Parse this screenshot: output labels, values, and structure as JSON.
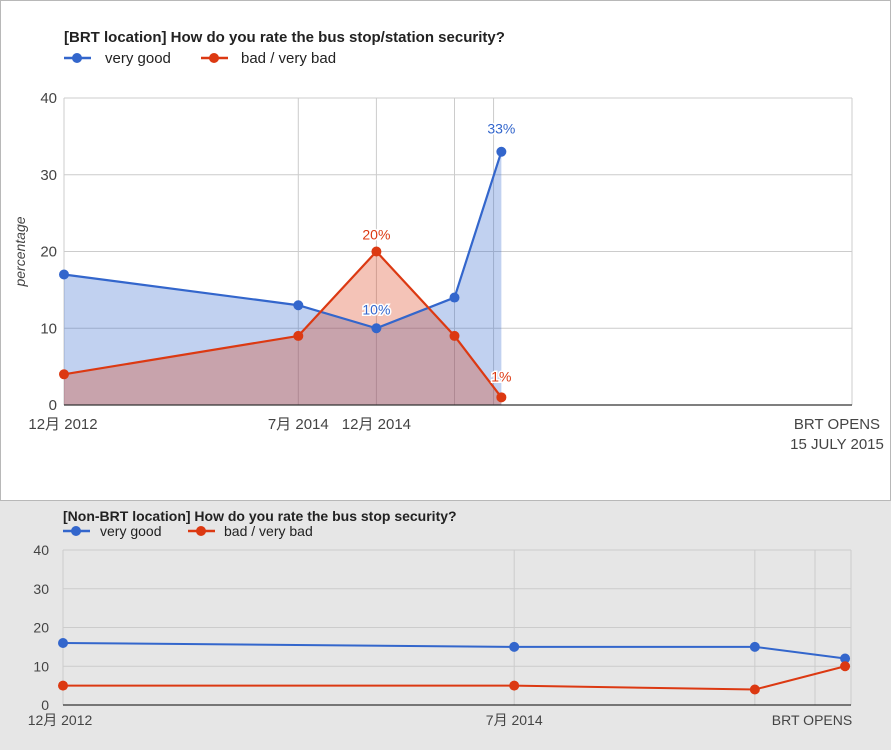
{
  "colors": {
    "blue": "#3366cc",
    "red": "#dc3912",
    "grid": "#cccccc",
    "axis": "#333333",
    "text": "#222222",
    "muted": "#444444"
  },
  "chart_data": [
    {
      "id": "brt",
      "type": "area",
      "title": "[BRT location] How do you rate the bus stop/station security?",
      "ylabel": "percentage",
      "xlabel": "",
      "ylim": [
        0,
        40
      ],
      "yticks": [
        0,
        10,
        20,
        30,
        40
      ],
      "legend_position": "top-left",
      "grid": true,
      "x_tick_labels": [
        {
          "at": 0,
          "lines": [
            "12月 2012"
          ]
        },
        {
          "at": 3,
          "lines": [
            "7月 2014"
          ]
        },
        {
          "at": 4,
          "lines": [
            "12月 2014"
          ]
        },
        {
          "at": 6,
          "lines": [
            "BRT OPENS",
            "15 JULY 2015"
          ]
        }
      ],
      "x_gridlines": [
        3,
        4,
        5,
        5.5
      ],
      "series": [
        {
          "name": "very good",
          "color": "#3366cc",
          "points": [
            [
              0,
              17
            ],
            [
              3,
              13
            ],
            [
              4,
              10
            ],
            [
              5,
              14
            ],
            [
              5.6,
              33
            ]
          ],
          "labels": {
            "2": "10%",
            "4": "33%"
          }
        },
        {
          "name": "bad / very bad",
          "color": "#dc3912",
          "points": [
            [
              0,
              4
            ],
            [
              3,
              9
            ],
            [
              4,
              20
            ],
            [
              5,
              9
            ],
            [
              5.6,
              1
            ]
          ],
          "labels": {
            "2": "20%",
            "4": "1%"
          }
        }
      ]
    },
    {
      "id": "nonbrt",
      "type": "line",
      "title": "[Non-BRT location] How do you rate the bus stop security?",
      "ylabel": "",
      "xlabel": "",
      "ylim": [
        0,
        40
      ],
      "yticks": [
        0,
        10,
        20,
        30,
        40
      ],
      "legend_position": "top-left",
      "grid": true,
      "x_tick_labels": [
        {
          "at": 0,
          "lines": [
            "12月 2012"
          ]
        },
        {
          "at": 3,
          "lines": [
            "7月 2014"
          ]
        },
        {
          "at": 5.6,
          "lines": [
            "BRT OPENS"
          ]
        }
      ],
      "x_gridlines": [
        3,
        4.6,
        5.0
      ],
      "series": [
        {
          "name": "very good",
          "color": "#3366cc",
          "points": [
            [
              0,
              16
            ],
            [
              3,
              15
            ],
            [
              4.6,
              15
            ],
            [
              5.2,
              12
            ]
          ],
          "labels": {}
        },
        {
          "name": "bad / very bad",
          "color": "#dc3912",
          "points": [
            [
              0,
              5
            ],
            [
              3,
              5
            ],
            [
              4.6,
              4
            ],
            [
              5.2,
              10
            ]
          ],
          "labels": {}
        }
      ]
    }
  ]
}
